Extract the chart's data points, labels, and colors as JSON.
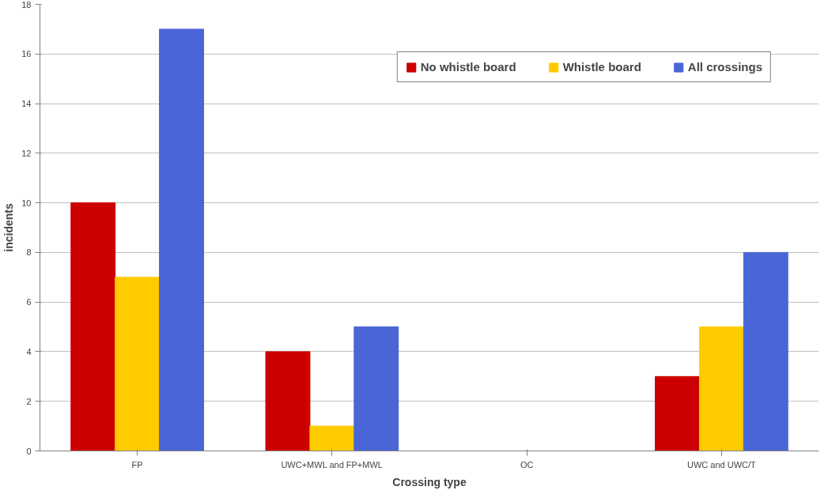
{
  "chart_data": {
    "type": "bar",
    "xlabel": "Crossing type",
    "ylabel": "incidents",
    "categories": [
      "FP",
      "UWC+MWL and FP+MWL",
      "OC",
      "UWC and UWC/T"
    ],
    "series": [
      {
        "name": "No whistle board",
        "color": "#cc0000",
        "values": [
          10,
          4,
          0,
          3
        ]
      },
      {
        "name": "Whistle board",
        "color": "#ffcc00",
        "values": [
          7,
          1,
          0,
          5
        ]
      },
      {
        "name": "All crossings",
        "color": "#4a66d6",
        "values": [
          17,
          5,
          0,
          8
        ]
      }
    ],
    "ylim": [
      0,
      18
    ],
    "yticks": [
      0,
      2,
      4,
      6,
      8,
      10,
      12,
      14,
      16,
      18
    ],
    "grid": "y",
    "legend": "top right"
  }
}
